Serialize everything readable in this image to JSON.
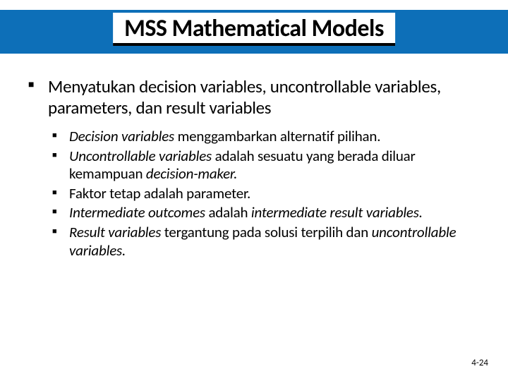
{
  "slide": {
    "title": "MSS Mathematical Models",
    "title_band_color": "#0d6fb8",
    "title_underline_color": "#000000",
    "background_color": "#ffffff",
    "title_fontsize": 34,
    "main_bullet_fontsize": 25,
    "sub_bullet_fontsize": 21,
    "bullet_glyph": "■",
    "main_point": {
      "text_pre": "Menyatukan decision variables, uncontrollable variables, parameters, dan result variables"
    },
    "sub_points": [
      {
        "segments": [
          {
            "text": "Decision variables",
            "italic": true
          },
          {
            "text": " menggambarkan alternatif pilihan.",
            "italic": false
          }
        ]
      },
      {
        "segments": [
          {
            "text": "Uncontrollable variables",
            "italic": true
          },
          {
            "text": " adalah sesuatu yang berada diluar kemampuan ",
            "italic": false
          },
          {
            "text": "decision-maker.",
            "italic": true
          }
        ]
      },
      {
        "segments": [
          {
            "text": "Faktor tetap adalah parameter.",
            "italic": false
          }
        ]
      },
      {
        "segments": [
          {
            "text": "Intermediate outcomes",
            "italic": true
          },
          {
            "text": " adalah ",
            "italic": false
          },
          {
            "text": "intermediate result variables.",
            "italic": true
          }
        ]
      },
      {
        "segments": [
          {
            "text": "Result variables",
            "italic": true
          },
          {
            "text": " tergantung pada solusi terpilih dan ",
            "italic": false
          },
          {
            "text": "uncontrollable variables.",
            "italic": true
          }
        ]
      }
    ],
    "page_number": "4-24"
  }
}
